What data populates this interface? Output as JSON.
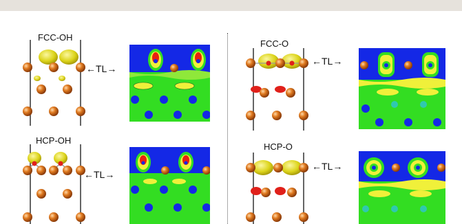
{
  "panels": {
    "fcc_oh": {
      "label": "FCC-OH",
      "tl": "←TL→"
    },
    "hcp_oh": {
      "label": "HCP-OH",
      "tl": "←TL→"
    },
    "fcc_o": {
      "label": "FCC-O",
      "tl": "←TL→"
    },
    "hcp_o": {
      "label": "HCP-O",
      "tl": "←TL→"
    }
  },
  "colors": {
    "atom": "#d9731c",
    "isosurface_yellow": "#e8e21a",
    "isosurface_red": "#e0201a",
    "map_blue": "#1428e6",
    "map_green": "#33dd22",
    "map_yellow": "#f0f03a",
    "map_red": "#e82010"
  },
  "icons": [
    "atom-sphere-icon",
    "double-arrow-icon"
  ]
}
